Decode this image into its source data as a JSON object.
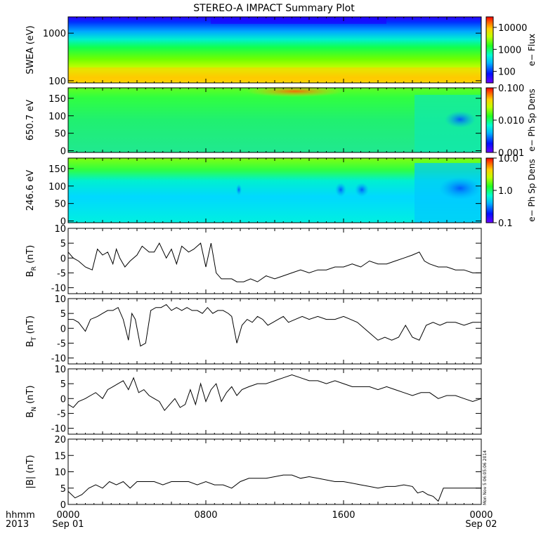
{
  "title": "STEREO-A IMPACT Summary Plot",
  "x_axis": {
    "corner_top": "hhmm",
    "corner_bottom": "2013",
    "ticks": [
      {
        "hour": 0,
        "top": "0000",
        "bottom": "Sep 01"
      },
      {
        "hour": 8,
        "top": "0800",
        "bottom": ""
      },
      {
        "hour": 16,
        "top": "1600",
        "bottom": ""
      },
      {
        "hour": 24,
        "top": "0000",
        "bottom": "Sep 02"
      }
    ],
    "range_hours": [
      0,
      24
    ]
  },
  "timestamp": "Mon Nov  5 06:05:06 2014",
  "spectrograms": [
    {
      "id": "swea",
      "ylabel": "SWEA (eV)",
      "yscale": "log",
      "yrange": [
        90,
        2200
      ],
      "yticks": [
        "100",
        "1000"
      ],
      "ytick_values": [
        100,
        1000
      ],
      "colorbar_label": "e− Flux",
      "colorbar_scale": "log",
      "colorbar_range": [
        30,
        30000
      ],
      "colorbar_ticks": [
        "100",
        "1000",
        "10000"
      ],
      "colorbar_tick_values": [
        100,
        1000,
        10000
      ]
    },
    {
      "id": "pad650",
      "ylabel": "650.7 eV",
      "yscale": "linear",
      "yrange": [
        -5,
        180
      ],
      "yticks": [
        "0",
        "50",
        "100",
        "150"
      ],
      "ytick_values": [
        0,
        50,
        100,
        150
      ],
      "colorbar_label": "e− Ph Sp Dens",
      "colorbar_scale": "log",
      "colorbar_range": [
        0.001,
        0.1
      ],
      "colorbar_ticks": [
        "0.001",
        "0.010",
        "0.100"
      ],
      "colorbar_tick_values": [
        0.001,
        0.01,
        0.1
      ]
    },
    {
      "id": "pad246",
      "ylabel": "246.6 eV",
      "yscale": "linear",
      "yrange": [
        -5,
        180
      ],
      "yticks": [
        "0",
        "50",
        "100",
        "150"
      ],
      "ytick_values": [
        0,
        50,
        100,
        150
      ],
      "colorbar_label": "e− Ph Sp Dens",
      "colorbar_scale": "log",
      "colorbar_range": [
        0.1,
        10
      ],
      "colorbar_ticks": [
        "0.1",
        "1.0",
        "10.0"
      ],
      "colorbar_tick_values": [
        0.1,
        1,
        10
      ]
    }
  ],
  "chart_data": [
    {
      "type": "line",
      "id": "br",
      "ylabel": "B",
      "ylabel_sub": "R",
      "ylabel_unit": " (nT)",
      "ylim": [
        -12,
        10
      ],
      "yticks": [
        -10,
        -5,
        0,
        5,
        10
      ],
      "x_hours": [
        0,
        0.3,
        0.6,
        1.0,
        1.4,
        1.7,
        2.0,
        2.3,
        2.6,
        2.8,
        3.0,
        3.3,
        3.6,
        4.0,
        4.3,
        4.7,
        5.0,
        5.3,
        5.7,
        6.0,
        6.3,
        6.6,
        7.0,
        7.3,
        7.7,
        8.0,
        8.3,
        8.6,
        8.9,
        9.2,
        9.5,
        9.8,
        10.2,
        10.6,
        11.0,
        11.5,
        12.0,
        12.5,
        13.0,
        13.5,
        14.0,
        14.5,
        15.0,
        15.5,
        16.0,
        16.5,
        17.0,
        17.5,
        18.0,
        18.5,
        19.0,
        19.5,
        20.0,
        20.4,
        20.7,
        21.0,
        21.5,
        22.0,
        22.5,
        23.0,
        23.5,
        24.0
      ],
      "values": [
        2,
        0,
        -1,
        -3,
        -4,
        3,
        1,
        2,
        -2,
        3,
        0,
        -3,
        -1,
        1,
        4,
        2,
        2,
        5,
        0,
        3,
        -2,
        4,
        2,
        3,
        5,
        -3,
        5,
        -5,
        -7,
        -7,
        -7,
        -8,
        -8,
        -7,
        -8,
        -6,
        -7,
        -6,
        -5,
        -4,
        -5,
        -4,
        -4,
        -3,
        -3,
        -2,
        -3,
        -1,
        -2,
        -2,
        -1,
        0,
        1,
        2,
        -1,
        -2,
        -3,
        -3,
        -4,
        -4,
        -5,
        -5
      ]
    },
    {
      "type": "line",
      "id": "bt",
      "ylabel": "B",
      "ylabel_sub": "T",
      "ylabel_unit": " (nT)",
      "ylim": [
        -12,
        10
      ],
      "yticks": [
        -10,
        -5,
        0,
        5,
        10
      ],
      "x_hours": [
        0,
        0.3,
        0.6,
        1.0,
        1.3,
        1.7,
        2.0,
        2.3,
        2.6,
        2.9,
        3.2,
        3.5,
        3.7,
        3.9,
        4.2,
        4.5,
        4.8,
        5.1,
        5.4,
        5.7,
        6.0,
        6.3,
        6.6,
        6.9,
        7.2,
        7.5,
        7.8,
        8.1,
        8.4,
        8.7,
        9.0,
        9.3,
        9.5,
        9.8,
        10.1,
        10.4,
        10.7,
        11.0,
        11.3,
        11.6,
        11.9,
        12.2,
        12.5,
        12.8,
        13.2,
        13.6,
        14.0,
        14.5,
        15.0,
        15.5,
        16.0,
        16.4,
        16.8,
        17.2,
        17.6,
        18.0,
        18.4,
        18.8,
        19.2,
        19.6,
        20.0,
        20.4,
        20.8,
        21.2,
        21.6,
        22.0,
        22.5,
        23.0,
        23.5,
        24.0
      ],
      "values": [
        3,
        3,
        2,
        -1,
        3,
        4,
        5,
        6,
        6,
        7,
        3,
        -4,
        5,
        3,
        -6,
        -5,
        6,
        7,
        7,
        8,
        6,
        7,
        6,
        7,
        6,
        6,
        5,
        7,
        5,
        6,
        6,
        5,
        4,
        -5,
        1,
        3,
        2,
        4,
        3,
        1,
        2,
        3,
        4,
        2,
        3,
        4,
        3,
        4,
        3,
        3,
        4,
        3,
        2,
        0,
        -2,
        -4,
        -3,
        -4,
        -3,
        1,
        -3,
        -4,
        1,
        2,
        1,
        2,
        2,
        1,
        2,
        2
      ]
    },
    {
      "type": "line",
      "id": "bn",
      "ylabel": "B",
      "ylabel_sub": "N",
      "ylabel_unit": " (nT)",
      "ylim": [
        -12,
        10
      ],
      "yticks": [
        -10,
        -5,
        0,
        5,
        10
      ],
      "x_hours": [
        0,
        0.3,
        0.6,
        1.0,
        1.3,
        1.6,
        2.0,
        2.3,
        2.6,
        2.9,
        3.2,
        3.5,
        3.8,
        4.1,
        4.4,
        4.7,
        5.0,
        5.3,
        5.6,
        5.9,
        6.2,
        6.5,
        6.8,
        7.1,
        7.4,
        7.7,
        8.0,
        8.3,
        8.6,
        8.9,
        9.2,
        9.5,
        9.8,
        10.1,
        10.5,
        11.0,
        11.5,
        12.0,
        12.5,
        13.0,
        13.5,
        14.0,
        14.5,
        15.0,
        15.5,
        16.0,
        16.5,
        17.0,
        17.5,
        18.0,
        18.5,
        19.0,
        19.5,
        20.0,
        20.5,
        21.0,
        21.5,
        22.0,
        22.5,
        23.0,
        23.5,
        24.0
      ],
      "values": [
        -2,
        -3,
        -1,
        0,
        1,
        2,
        0,
        3,
        4,
        5,
        6,
        3,
        7,
        2,
        3,
        1,
        0,
        -1,
        -4,
        -2,
        0,
        -3,
        -2,
        3,
        -2,
        5,
        -1,
        3,
        5,
        -1,
        2,
        4,
        1,
        3,
        4,
        5,
        5,
        6,
        7,
        8,
        7,
        6,
        6,
        5,
        6,
        5,
        4,
        4,
        4,
        3,
        4,
        3,
        2,
        1,
        2,
        2,
        0,
        1,
        1,
        0,
        -1,
        0
      ]
    },
    {
      "type": "line",
      "id": "bmag",
      "ylabel": "|B| (nT)",
      "ylim": [
        0,
        20
      ],
      "yticks": [
        0,
        5,
        10,
        15,
        20
      ],
      "x_hours": [
        0,
        0.4,
        0.8,
        1.2,
        1.6,
        2.0,
        2.4,
        2.8,
        3.2,
        3.6,
        4.0,
        4.5,
        5.0,
        5.5,
        6.0,
        6.5,
        7.0,
        7.5,
        8.0,
        8.5,
        9.0,
        9.5,
        10.0,
        10.5,
        11.0,
        11.5,
        12.0,
        12.5,
        13.0,
        13.5,
        14.0,
        14.5,
        15.0,
        15.5,
        16.0,
        16.5,
        17.0,
        17.5,
        18.0,
        18.5,
        19.0,
        19.5,
        20.0,
        20.3,
        20.6,
        20.9,
        21.2,
        21.5,
        21.8,
        22.2,
        22.6,
        23.0,
        23.5,
        24.0
      ],
      "values": [
        4,
        2,
        3,
        5,
        6,
        5,
        7,
        6,
        7,
        5,
        7,
        7,
        7,
        6,
        7,
        7,
        7,
        6,
        7,
        6,
        6,
        5,
        7,
        8,
        8,
        8,
        8.5,
        9,
        9,
        8,
        8.5,
        8,
        7.5,
        7,
        7,
        6.5,
        6,
        5.5,
        5,
        5.5,
        5.5,
        6,
        5.5,
        3.5,
        4,
        3,
        2.5,
        1,
        5,
        5,
        5,
        5,
        5,
        5
      ]
    }
  ]
}
